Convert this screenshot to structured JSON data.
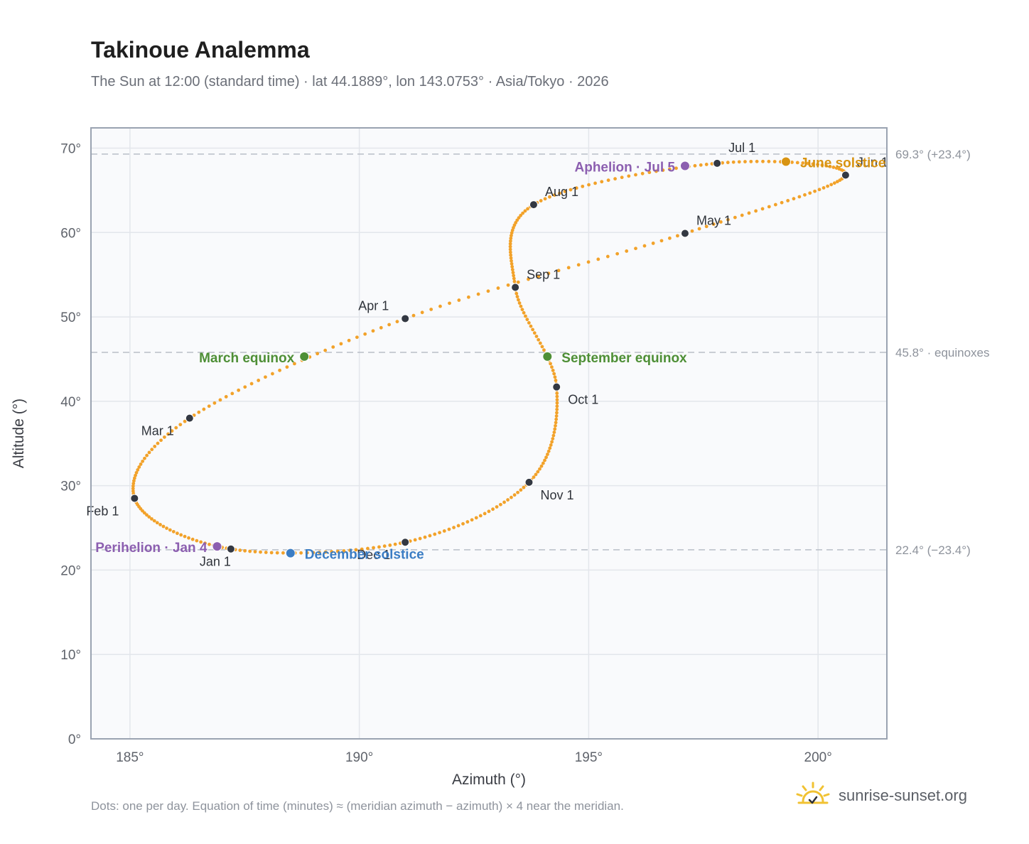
{
  "header": {
    "title": "Takinoue Analemma",
    "subtitle": "The Sun at 12:00 (standard time) · lat 44.1889°, lon 143.0753° · Asia/Tokyo · 2026"
  },
  "footer": {
    "note": "Dots: one per day. Equation of time (minutes) ≈ (meridian azimuth − azimuth) × 4 near the meridian.",
    "brand": "sunrise-sunset.org",
    "brand_icon": "sun-icon"
  },
  "colors": {
    "path": "#f2a22a",
    "month": "#333842",
    "equinox": "#4e8f36",
    "solstice_june": "#d89412",
    "solstice_december": "#3b7dc4",
    "apsis": "#8c5fb0",
    "reference_line": "#b9bec7",
    "grid": "#e3e6eb",
    "plot_bg": "#f9fafc",
    "frame": "#9aa3b1"
  },
  "chart_data": {
    "type": "scatter",
    "xlabel": "Azimuth (°)",
    "ylabel": "Altitude (°)",
    "xlim": [
      184.15,
      201.5
    ],
    "ylim": [
      0,
      72.4
    ],
    "xticks": [
      185,
      190,
      195,
      200
    ],
    "yticks": [
      0,
      10,
      20,
      30,
      40,
      50,
      60,
      70
    ],
    "xtick_labels": [
      "185°",
      "190°",
      "195°",
      "200°"
    ],
    "ytick_labels": [
      "0°",
      "10°",
      "20°",
      "30°",
      "40°",
      "50°",
      "60°",
      "70°"
    ],
    "grid": true,
    "reference_lines": [
      {
        "y": 69.3,
        "label": "69.3° (+23.4°)"
      },
      {
        "y": 45.8,
        "label": "45.8° · equinoxes"
      },
      {
        "y": 22.4,
        "label": "22.4° (−23.4°)"
      }
    ],
    "markers": [
      {
        "label": "Jan 1",
        "kind": "month",
        "x": 187.2,
        "y": 22.5
      },
      {
        "label": "Feb 1",
        "kind": "month",
        "x": 185.1,
        "y": 28.5
      },
      {
        "label": "Mar 1",
        "kind": "month",
        "x": 186.3,
        "y": 38.0
      },
      {
        "label": "Apr 1",
        "kind": "month",
        "x": 191.0,
        "y": 49.8
      },
      {
        "label": "May 1",
        "kind": "month",
        "x": 197.1,
        "y": 59.9
      },
      {
        "label": "Jun 1",
        "kind": "month",
        "x": 200.6,
        "y": 66.8
      },
      {
        "label": "Jul 1",
        "kind": "month",
        "x": 197.8,
        "y": 68.2
      },
      {
        "label": "Aug 1",
        "kind": "month",
        "x": 193.8,
        "y": 63.3
      },
      {
        "label": "Sep 1",
        "kind": "month",
        "x": 193.4,
        "y": 53.5
      },
      {
        "label": "Oct 1",
        "kind": "month",
        "x": 194.3,
        "y": 41.7
      },
      {
        "label": "Nov 1",
        "kind": "month",
        "x": 193.7,
        "y": 30.4
      },
      {
        "label": "Dec 1",
        "kind": "month",
        "x": 191.0,
        "y": 23.3
      },
      {
        "label": "March equinox",
        "kind": "equinox",
        "x": 188.8,
        "y": 45.3
      },
      {
        "label": "September equinox",
        "kind": "equinox",
        "x": 194.1,
        "y": 45.3
      },
      {
        "label": "June solstice",
        "kind": "solstice_june",
        "x": 199.3,
        "y": 68.4
      },
      {
        "label": "December solstice",
        "kind": "solstice_december",
        "x": 188.5,
        "y": 22.0
      },
      {
        "label": "Perihelion · Jan 4",
        "kind": "apsis",
        "x": 186.9,
        "y": 22.8
      },
      {
        "label": "Aphelion · Jul 5",
        "kind": "apsis",
        "x": 197.1,
        "y": 67.9
      }
    ]
  }
}
